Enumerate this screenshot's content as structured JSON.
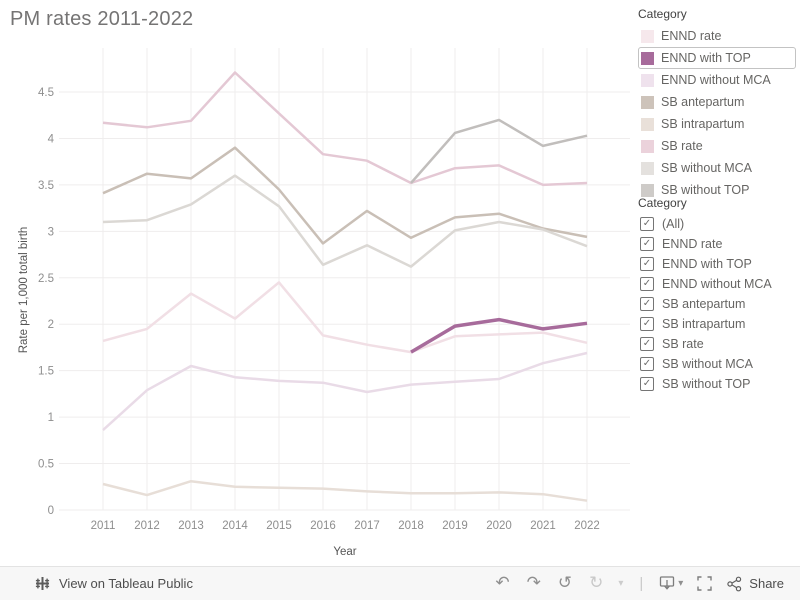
{
  "title": "PM rates 2011-2022",
  "chart_data": {
    "type": "line",
    "title": "PM rates 2011-2022",
    "xlabel": "Year",
    "ylabel": "Rate per 1,000 total birth",
    "x": [
      2011,
      2012,
      2013,
      2014,
      2015,
      2016,
      2017,
      2018,
      2019,
      2020,
      2021,
      2022
    ],
    "ylim": [
      0,
      4.75
    ],
    "yticks": [
      "0",
      "0.5",
      "1",
      "1.5",
      "2",
      "2.5",
      "3",
      "3.5",
      "4",
      "4.5"
    ],
    "grid": true,
    "legend_position": "right",
    "series": [
      {
        "name": "ENND rate",
        "color": "#f1dfe5",
        "values": [
          1.82,
          1.95,
          2.33,
          2.06,
          2.45,
          1.88,
          1.78,
          1.7,
          1.87,
          1.89,
          1.91,
          1.8
        ]
      },
      {
        "name": "ENND with TOP",
        "color": "#a76b9b",
        "values": [
          null,
          null,
          null,
          null,
          null,
          null,
          null,
          1.7,
          1.98,
          2.05,
          1.95,
          2.01
        ]
      },
      {
        "name": "ENND without MCA",
        "color": "#e9dbe7",
        "values": [
          0.86,
          1.29,
          1.55,
          1.43,
          1.39,
          1.37,
          1.27,
          1.35,
          1.38,
          1.41,
          1.58,
          1.69
        ]
      },
      {
        "name": "SB antepartum",
        "color": "#c9bfb6",
        "values": [
          3.41,
          3.62,
          3.57,
          3.9,
          3.45,
          2.87,
          3.22,
          2.93,
          3.15,
          3.19,
          3.03,
          2.94
        ]
      },
      {
        "name": "SB intrapartum",
        "color": "#e7ded7",
        "values": [
          0.28,
          0.16,
          0.31,
          0.25,
          0.24,
          0.23,
          0.2,
          0.18,
          0.18,
          0.19,
          0.17,
          0.1
        ]
      },
      {
        "name": "SB rate",
        "color": "#e4c8d4",
        "values": [
          4.17,
          4.12,
          4.19,
          4.71,
          4.27,
          3.83,
          3.76,
          3.52,
          3.68,
          3.71,
          3.5,
          3.52
        ]
      },
      {
        "name": "SB without MCA",
        "color": "#dbd8d4",
        "values": [
          3.1,
          3.12,
          3.29,
          3.6,
          3.27,
          2.64,
          2.85,
          2.62,
          3.01,
          3.1,
          3.02,
          2.84
        ]
      },
      {
        "name": "SB without TOP",
        "color": "#c1bebc",
        "values": [
          null,
          null,
          null,
          null,
          null,
          null,
          null,
          3.52,
          4.06,
          4.2,
          3.92,
          4.03
        ]
      }
    ]
  },
  "legend": {
    "title": "Category",
    "selected": "ENND with TOP",
    "items": [
      {
        "label": "ENND rate",
        "color": "#f6e8ec",
        "selected": false
      },
      {
        "label": "ENND with TOP",
        "color": "#a76b9b",
        "selected": true
      },
      {
        "label": "ENND without MCA",
        "color": "#efe2ed",
        "selected": false
      },
      {
        "label": "SB antepartum",
        "color": "#cdc3ba",
        "selected": false
      },
      {
        "label": "SB intrapartum",
        "color": "#e9e0d9",
        "selected": false
      },
      {
        "label": "SB rate",
        "color": "#ebd2db",
        "selected": false
      },
      {
        "label": "SB without MCA",
        "color": "#e4e1de",
        "selected": false
      },
      {
        "label": "SB without TOP",
        "color": "#cecbc8",
        "selected": false
      }
    ]
  },
  "filter": {
    "title": "Category",
    "items": [
      {
        "label": "(All)",
        "checked": true
      },
      {
        "label": "ENND rate",
        "checked": true
      },
      {
        "label": "ENND with TOP",
        "checked": true
      },
      {
        "label": "ENND without MCA",
        "checked": true
      },
      {
        "label": "SB antepartum",
        "checked": true
      },
      {
        "label": "SB intrapartum",
        "checked": true
      },
      {
        "label": "SB rate",
        "checked": true
      },
      {
        "label": "SB without MCA",
        "checked": true
      },
      {
        "label": "SB without TOP",
        "checked": true
      }
    ]
  },
  "toolbar": {
    "brand": "View on Tableau Public",
    "share": "Share",
    "glyphs": {
      "undo": "↶",
      "redo": "↷",
      "revert": "↺",
      "refresh": "↻",
      "caret": "▾",
      "separator": "|",
      "check": "✓"
    }
  }
}
